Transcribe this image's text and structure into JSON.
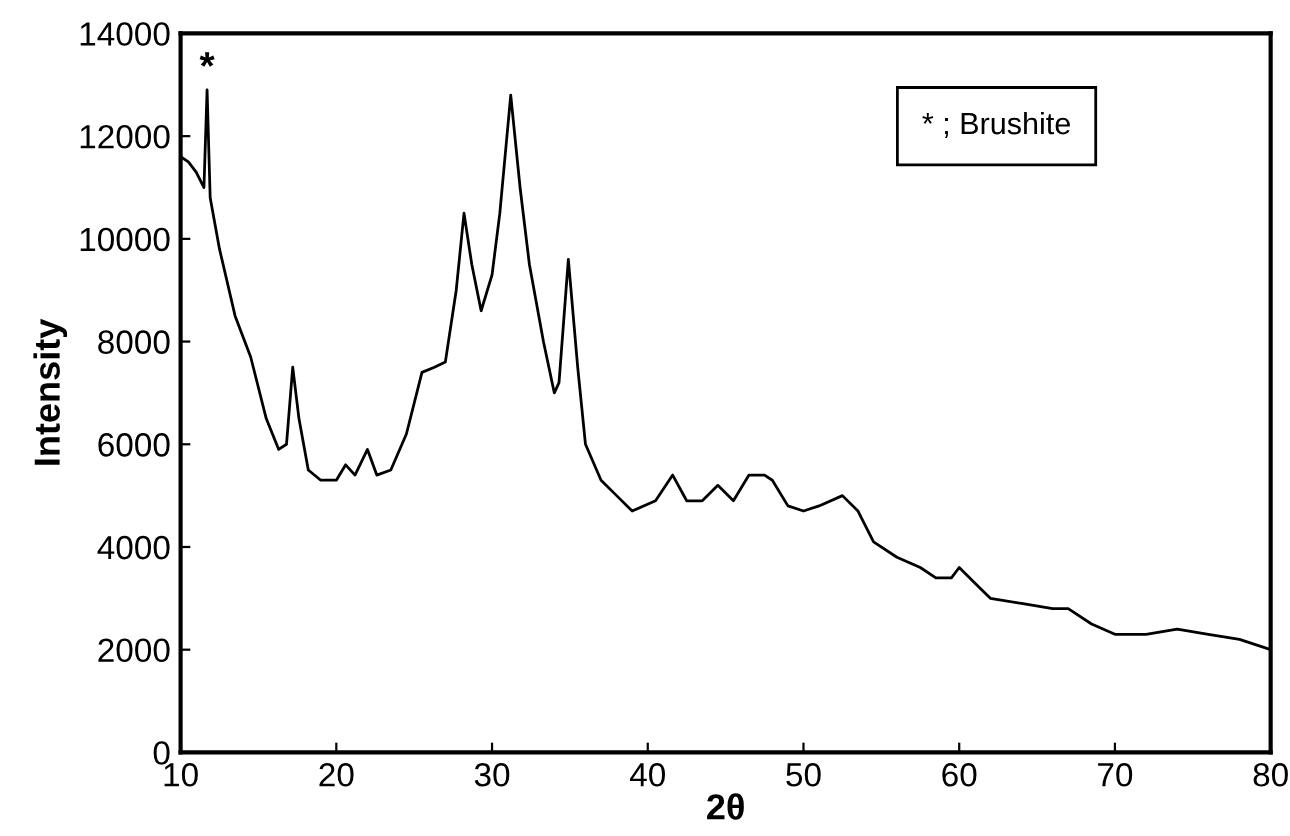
{
  "chart_data": {
    "type": "line",
    "xlabel": "2θ",
    "ylabel": "Intensity",
    "x": [
      10,
      10.5,
      11,
      11.5,
      11.7,
      11.9,
      12.5,
      13.5,
      14.5,
      15.5,
      16.3,
      16.8,
      17.2,
      17.6,
      18.2,
      19,
      20,
      20.6,
      21.2,
      22,
      22.6,
      23.5,
      24.5,
      25.5,
      26.3,
      27,
      27.7,
      28.2,
      28.7,
      29.3,
      30,
      30.5,
      31.2,
      31.8,
      32.4,
      33.3,
      34,
      34.3,
      34.9,
      35.5,
      36,
      37,
      38,
      39,
      40.5,
      41.6,
      42.5,
      43.5,
      44.5,
      45.5,
      46.5,
      47.5,
      48,
      49,
      50,
      51,
      52.5,
      53.5,
      54.5,
      56,
      57.5,
      58.5,
      59.5,
      60,
      61,
      62,
      64,
      66,
      67,
      68.5,
      70,
      72,
      74,
      76,
      78,
      80
    ],
    "series": [
      {
        "color": "#000000",
        "values": [
          11600,
          11500,
          11300,
          11000,
          12900,
          10800,
          9800,
          8500,
          7700,
          6500,
          5900,
          6000,
          7500,
          6500,
          5500,
          5300,
          5300,
          5600,
          5400,
          5900,
          5400,
          5500,
          6200,
          7400,
          7500,
          7600,
          9000,
          10500,
          9500,
          8600,
          9300,
          10500,
          12800,
          11000,
          9500,
          8000,
          7000,
          7200,
          9600,
          7500,
          6000,
          5300,
          5000,
          4700,
          4900,
          5400,
          4900,
          4900,
          5200,
          4900,
          5400,
          5400,
          5300,
          4800,
          4700,
          4800,
          5000,
          4700,
          4100,
          3800,
          3600,
          3400,
          3400,
          3600,
          3300,
          3000,
          2900,
          2800,
          2800,
          2500,
          2300,
          2300,
          2400,
          2300,
          2200,
          2000
        ]
      }
    ],
    "xlim": [
      10,
      80
    ],
    "ylim": [
      0,
      14000
    ],
    "xticks": [
      10,
      20,
      30,
      40,
      50,
      60,
      70,
      80
    ],
    "yticks": [
      0,
      2000,
      4000,
      6000,
      8000,
      10000,
      12000,
      14000
    ],
    "grid": false,
    "legend": false,
    "marker": "none",
    "line_style": "solid",
    "annotations": [
      {
        "text": "*",
        "x": 11.7,
        "y": 12900
      },
      "* ; Brushite"
    ]
  }
}
